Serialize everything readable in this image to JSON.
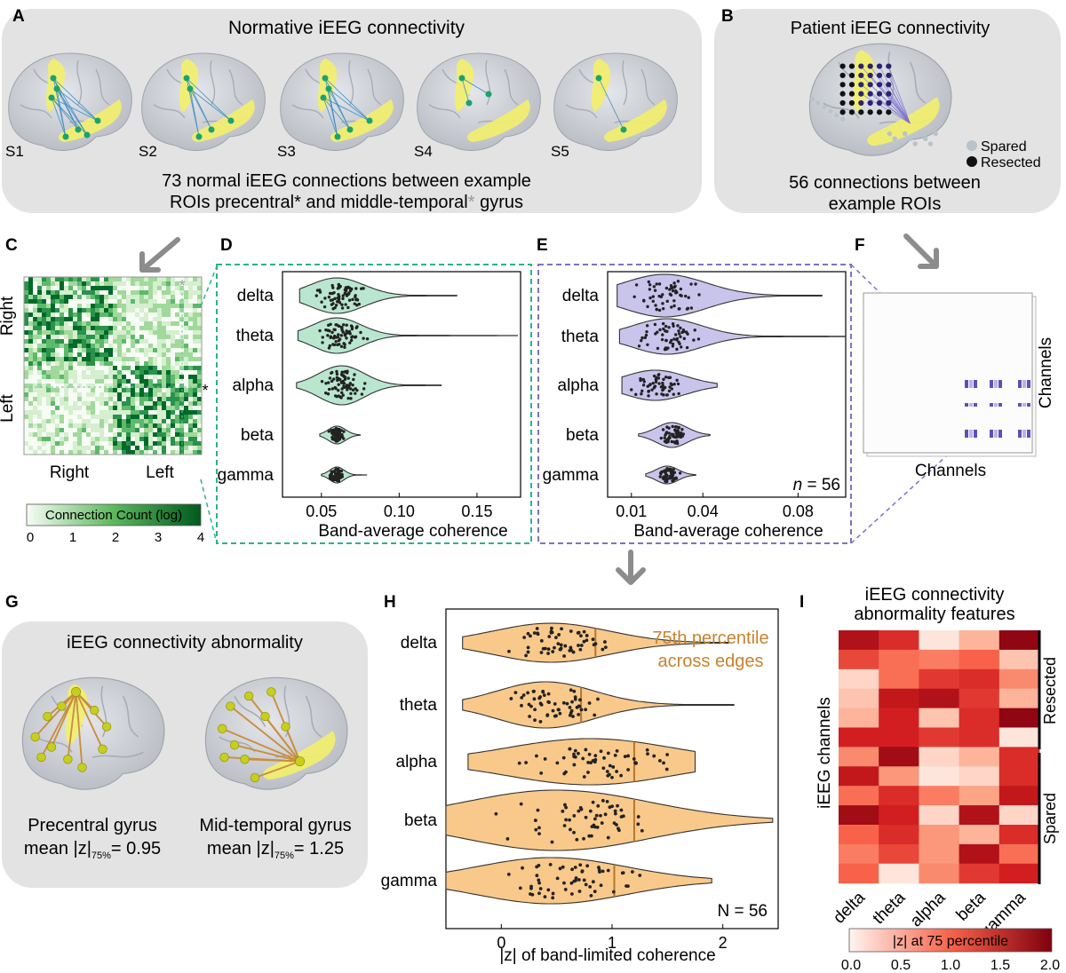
{
  "colors": {
    "panel_bg": "#e3e3e3",
    "brain": "#c9ccd2",
    "roi_yellow": "#f3f06a",
    "green_fill": "#b9e6cf",
    "green_dash": "#2bb38a",
    "purple_fill": "#c9c4ec",
    "purple_dash": "#7d72c4",
    "orange_fill": "#f8c98a",
    "orange_line": "#b8752c",
    "orange_text": "#c8822f",
    "arrow": "#8c8c8c",
    "dot": "#222222"
  },
  "panel_A": {
    "letter": "A",
    "title": "Normative iEEG connectivity",
    "subjects": [
      "S1",
      "S2",
      "S3",
      "S4",
      "S5"
    ],
    "caption_line1": "73 normal iEEG connections between example",
    "caption_line2_part1": "ROIs precentral",
    "caption_line2_star1": "*",
    "caption_line2_part2": " and middle-temporal",
    "caption_line2_star2": "*",
    "caption_line2_part3": " gyrus"
  },
  "panel_B": {
    "letter": "B",
    "title": "Patient iEEG connectivity",
    "legend_spared": "Spared",
    "legend_resected": "Resected",
    "caption_line1": "56 connections between",
    "caption_line2": "example ROIs"
  },
  "panel_C": {
    "letter": "C",
    "y_right": "Right",
    "y_left": "Left",
    "x_right": "Right",
    "x_left": "Left",
    "star_top": "*",
    "star_side": "*",
    "colorbar_label": "Connection Count (log)",
    "colorbar_ticks": [
      "0",
      "1",
      "2",
      "3",
      "4"
    ]
  },
  "panel_D": {
    "letter": "D",
    "xlabel": "Band-average coherence",
    "xticks": [
      "0.05",
      "0.10",
      "0.15"
    ]
  },
  "panel_E": {
    "letter": "E",
    "xlabel": "Band-average coherence",
    "xticks": [
      "0.01",
      "0.04",
      "0.08"
    ],
    "n_label_italic": "n",
    "n_label_rest": " = 56"
  },
  "panel_F": {
    "letter": "F",
    "xlabel": "Channels",
    "ylabel": "Channels"
  },
  "panel_G": {
    "letter": "G",
    "title": "iEEG connectivity abnormality",
    "left_name": "Precentral gyrus",
    "left_mean": "mean |z|",
    "left_sub": "75%",
    "left_value": "= 0.95",
    "right_name": "Mid-temporal gyrus",
    "right_mean": "mean |z|",
    "right_sub": "75%",
    "right_value": "= 1.25"
  },
  "panel_H": {
    "letter": "H",
    "xlabel": "|z| of  band-limited coherence",
    "xticks": [
      "0",
      "1",
      "2"
    ],
    "annotation_line1": "75th percentile",
    "annotation_line2": "across edges",
    "n_label": "N = 56"
  },
  "panel_I": {
    "letter": "I",
    "title_line1": "iEEG connectivity",
    "title_line2": "abnormality features",
    "ylabel": "iEEG channels",
    "group_resected": "Resected",
    "group_spared": "Spared",
    "colorbar_label": "|z| at 75 percentile",
    "colorbar_ticks": [
      "0.0",
      "0.5",
      "1.0",
      "1.5",
      "2.0"
    ]
  },
  "bands": [
    "delta",
    "theta",
    "alpha",
    "beta",
    "gamma"
  ],
  "chart_data": [
    {
      "type": "violin",
      "panel": "D",
      "xlabel": "Band-average coherence",
      "xlim": [
        0.025,
        0.178
      ],
      "categories": [
        "delta",
        "theta",
        "alpha",
        "beta",
        "gamma"
      ],
      "n_points": 73,
      "series": [
        {
          "name": "delta",
          "min": 0.036,
          "max": 0.137,
          "median": 0.06,
          "p25": 0.053,
          "p75": 0.072
        },
        {
          "name": "theta",
          "min": 0.035,
          "max": 0.176,
          "median": 0.06,
          "p25": 0.054,
          "p75": 0.071
        },
        {
          "name": "alpha",
          "min": 0.034,
          "max": 0.127,
          "median": 0.063,
          "p25": 0.056,
          "p75": 0.072
        },
        {
          "name": "beta",
          "min": 0.049,
          "max": 0.075,
          "median": 0.06,
          "p25": 0.057,
          "p75": 0.063
        },
        {
          "name": "gamma",
          "min": 0.05,
          "max": 0.079,
          "median": 0.06,
          "p25": 0.057,
          "p75": 0.062
        }
      ]
    },
    {
      "type": "violin",
      "panel": "E",
      "xlabel": "Band-average coherence",
      "xlim": [
        0.0,
        0.1
      ],
      "categories": [
        "delta",
        "theta",
        "alpha",
        "beta",
        "gamma"
      ],
      "n_points": 56,
      "series": [
        {
          "name": "delta",
          "min": 0.004,
          "max": 0.09,
          "median": 0.024,
          "p25": 0.016,
          "p75": 0.035
        },
        {
          "name": "theta",
          "min": 0.005,
          "max": 0.1,
          "median": 0.025,
          "p25": 0.018,
          "p75": 0.034
        },
        {
          "name": "alpha",
          "min": 0.006,
          "max": 0.046,
          "median": 0.02,
          "p25": 0.015,
          "p75": 0.029
        },
        {
          "name": "beta",
          "min": 0.013,
          "max": 0.043,
          "median": 0.027,
          "p25": 0.024,
          "p75": 0.031
        },
        {
          "name": "gamma",
          "min": 0.016,
          "max": 0.037,
          "median": 0.025,
          "p25": 0.023,
          "p75": 0.028
        }
      ]
    },
    {
      "type": "violin",
      "panel": "H",
      "xlabel": "|z| of  band-limited coherence",
      "xlim": [
        -0.5,
        2.5
      ],
      "categories": [
        "delta",
        "theta",
        "alpha",
        "beta",
        "gamma"
      ],
      "n_points": 56,
      "p75_marker": [
        0.85,
        0.72,
        1.2,
        1.2,
        1.02
      ],
      "series": [
        {
          "name": "delta",
          "min": -0.35,
          "max": 2.05,
          "median": 0.45,
          "p25": 0.28,
          "p75": 0.85
        },
        {
          "name": "theta",
          "min": -0.35,
          "max": 2.1,
          "median": 0.4,
          "p25": 0.24,
          "p75": 0.72
        },
        {
          "name": "alpha",
          "min": -0.3,
          "max": 1.75,
          "median": 0.8,
          "p25": 0.38,
          "p75": 1.2
        },
        {
          "name": "beta",
          "min": -0.5,
          "max": 2.45,
          "median": 0.5,
          "p25": 0.28,
          "p75": 1.2
        },
        {
          "name": "gamma",
          "min": -0.5,
          "max": 1.9,
          "median": 0.45,
          "p25": 0.28,
          "p75": 1.02
        }
      ]
    },
    {
      "type": "heatmap",
      "panel": "I",
      "title": "iEEG connectivity abnormality features",
      "xlabels": [
        "delta",
        "theta",
        "alpha",
        "beta",
        "gamma"
      ],
      "ylabel": "iEEG channels",
      "clim": [
        0.0,
        2.0
      ],
      "colorbar_label": "|z| at 75 percentile",
      "row_groups": [
        {
          "name": "Resected",
          "rows": [
            0,
            5
          ]
        },
        {
          "name": "Spared",
          "rows": [
            6,
            12
          ]
        }
      ],
      "values": [
        [
          1.7,
          1.4,
          0.1,
          0.4,
          1.9
        ],
        [
          1.2,
          0.9,
          0.8,
          1.0,
          0.3
        ],
        [
          0.2,
          0.9,
          1.3,
          1.4,
          0.7
        ],
        [
          0.3,
          1.6,
          1.7,
          1.3,
          0.4
        ],
        [
          0.4,
          1.5,
          0.3,
          1.4,
          1.9
        ],
        [
          1.5,
          1.5,
          1.3,
          1.4,
          0.1
        ],
        [
          0.7,
          1.8,
          0.2,
          0.4,
          1.4
        ],
        [
          1.6,
          0.6,
          0.1,
          0.2,
          1.4
        ],
        [
          0.9,
          1.4,
          0.8,
          0.5,
          1.6
        ],
        [
          1.8,
          1.5,
          0.2,
          1.7,
          0.2
        ],
        [
          1.0,
          1.4,
          0.6,
          0.4,
          1.4
        ],
        [
          0.8,
          1.2,
          0.6,
          1.7,
          0.9
        ],
        [
          1.0,
          0.1,
          0.7,
          1.3,
          1.5
        ]
      ]
    }
  ]
}
